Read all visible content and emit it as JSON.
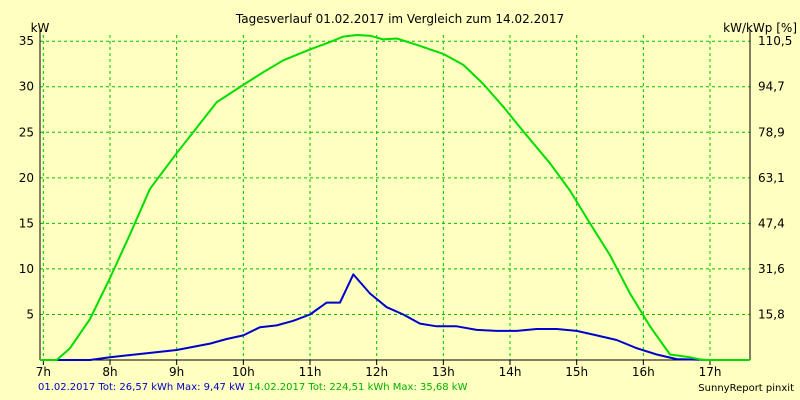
{
  "chart_data": {
    "type": "line",
    "title": "Tagesverlauf 01.02.2017 im Vergleich zum 14.02.2017",
    "ylabel_left": "kW",
    "ylabel_right": "kW/kWp [%]",
    "x_ticks": [
      "7h",
      "8h",
      "9h",
      "10h",
      "11h",
      "12h",
      "13h",
      "14h",
      "15h",
      "16h",
      "17h"
    ],
    "y_ticks_left": [
      5,
      10,
      15,
      20,
      25,
      30,
      35
    ],
    "y_ticks_right": [
      "15,8",
      "31,6",
      "47,4",
      "63,1",
      "78,9",
      "94,7",
      "110,5"
    ],
    "ylim": [
      0,
      35.68
    ],
    "xlim": [
      6.95,
      17.6
    ],
    "grid": true,
    "series": [
      {
        "name": "01.02.2017",
        "color": "#0000cc",
        "x": [
          6.95,
          7.7,
          8.0,
          8.5,
          9.0,
          9.5,
          9.75,
          10.0,
          10.25,
          10.5,
          10.75,
          11.0,
          11.25,
          11.45,
          11.65,
          11.9,
          12.15,
          12.4,
          12.65,
          12.9,
          13.2,
          13.5,
          13.8,
          14.1,
          14.4,
          14.7,
          15.0,
          15.3,
          15.6,
          15.9,
          16.2,
          16.5,
          17.0,
          17.6
        ],
        "y": [
          0,
          0,
          0.3,
          0.7,
          1.1,
          1.8,
          2.3,
          2.7,
          3.6,
          3.8,
          4.3,
          5.0,
          6.3,
          6.3,
          9.4,
          7.3,
          5.8,
          5.0,
          4.0,
          3.7,
          3.7,
          3.3,
          3.2,
          3.2,
          3.4,
          3.4,
          3.2,
          2.7,
          2.2,
          1.3,
          0.6,
          0.1,
          0,
          0
        ]
      },
      {
        "name": "14.02.2017",
        "color": "#00dd00",
        "x": [
          6.95,
          7.2,
          7.4,
          7.7,
          8.0,
          8.3,
          8.6,
          9.0,
          9.3,
          9.6,
          10.0,
          10.3,
          10.6,
          11.0,
          11.3,
          11.5,
          11.7,
          11.9,
          12.1,
          12.3,
          12.6,
          13.0,
          13.3,
          13.6,
          13.9,
          14.2,
          14.6,
          14.9,
          15.2,
          15.5,
          15.8,
          16.1,
          16.4,
          16.7,
          16.9,
          17.2,
          17.6
        ],
        "y": [
          0,
          0,
          1.3,
          4.5,
          9.0,
          13.8,
          18.8,
          22.7,
          25.5,
          28.3,
          30.2,
          31.6,
          32.9,
          34.1,
          34.9,
          35.5,
          35.68,
          35.6,
          35.2,
          35.3,
          34.6,
          33.6,
          32.4,
          30.3,
          27.8,
          25.1,
          21.6,
          18.6,
          15.0,
          11.5,
          7.3,
          3.7,
          0.6,
          0.3,
          0,
          0,
          0
        ]
      }
    ],
    "footer": {
      "series1_label": "01.02.2017 Tot: 26,57 kWh Max: 9,47 kW",
      "series2_label": "14.02.2017 Tot: 224,51 kWh Max: 35,68 kW",
      "credit": "SunnyReport pinxit"
    }
  }
}
